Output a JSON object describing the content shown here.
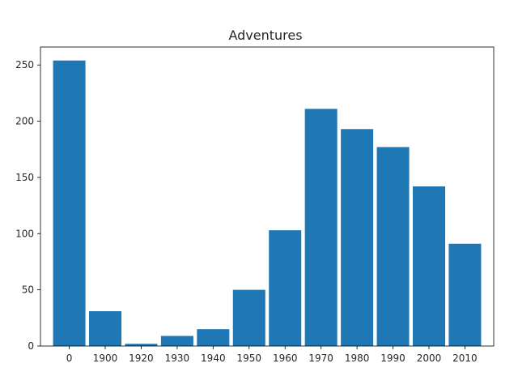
{
  "chart_data": {
    "type": "bar",
    "title": "Adventures",
    "xlabel": "",
    "ylabel": "",
    "categories": [
      "0",
      "1900",
      "1920",
      "1930",
      "1940",
      "1950",
      "1960",
      "1970",
      "1980",
      "1990",
      "2000",
      "2010"
    ],
    "values": [
      254,
      31,
      2,
      9,
      15,
      50,
      103,
      211,
      193,
      177,
      142,
      91
    ],
    "ylim": [
      0,
      266
    ],
    "yticks": [
      0,
      50,
      100,
      150,
      200,
      250
    ],
    "bar_color": "#1f77b4",
    "grid": false,
    "legend": "none"
  }
}
